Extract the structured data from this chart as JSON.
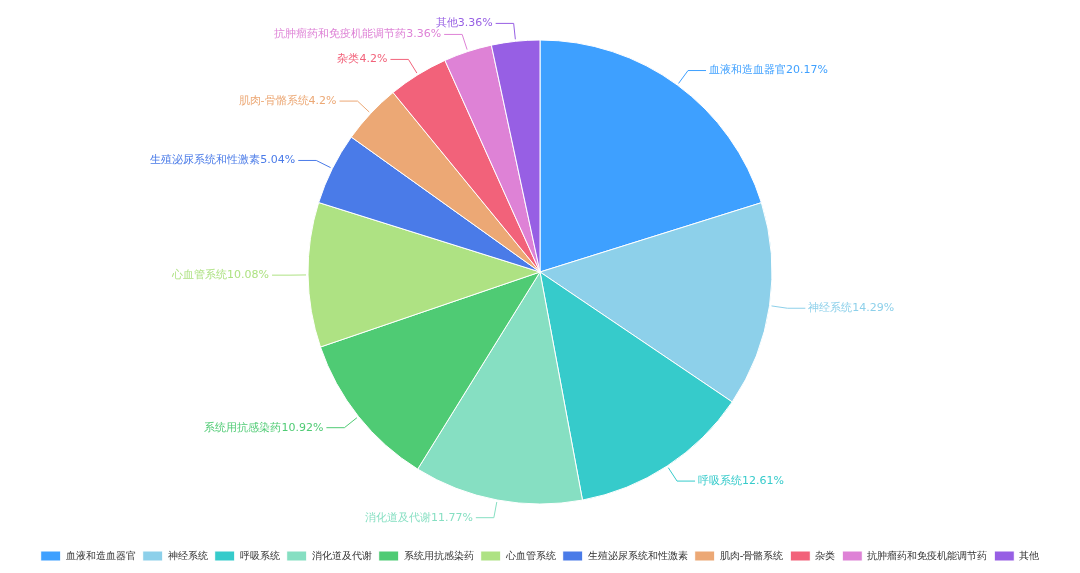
{
  "chart_data": {
    "type": "pie",
    "categories": [
      "血液和造血器官",
      "神经系统",
      "呼吸系统",
      "消化道及代谢",
      "系统用抗感染药",
      "心血管系统",
      "生殖泌尿系统和性激素",
      "肌肉-骨骼系统",
      "杂类",
      "抗肿瘤药和免疫机能调节药",
      "其他"
    ],
    "values": [
      20.17,
      14.29,
      12.61,
      11.77,
      10.92,
      10.08,
      5.04,
      4.2,
      4.2,
      3.36,
      3.36
    ],
    "value_labels": [
      "20.17%",
      "14.29%",
      "12.61%",
      "11.77%",
      "10.92%",
      "10.08%",
      "5.04%",
      "4.2%",
      "4.2%",
      "3.36%",
      "3.36%"
    ],
    "colors": [
      "#3ea0ff",
      "#8dd0ea",
      "#36cbcb",
      "#86dfc2",
      "#4fcb74",
      "#aee283",
      "#4a7be8",
      "#eca875",
      "#f2627a",
      "#de82d6",
      "#975fe4"
    ],
    "legend": "bottom"
  }
}
